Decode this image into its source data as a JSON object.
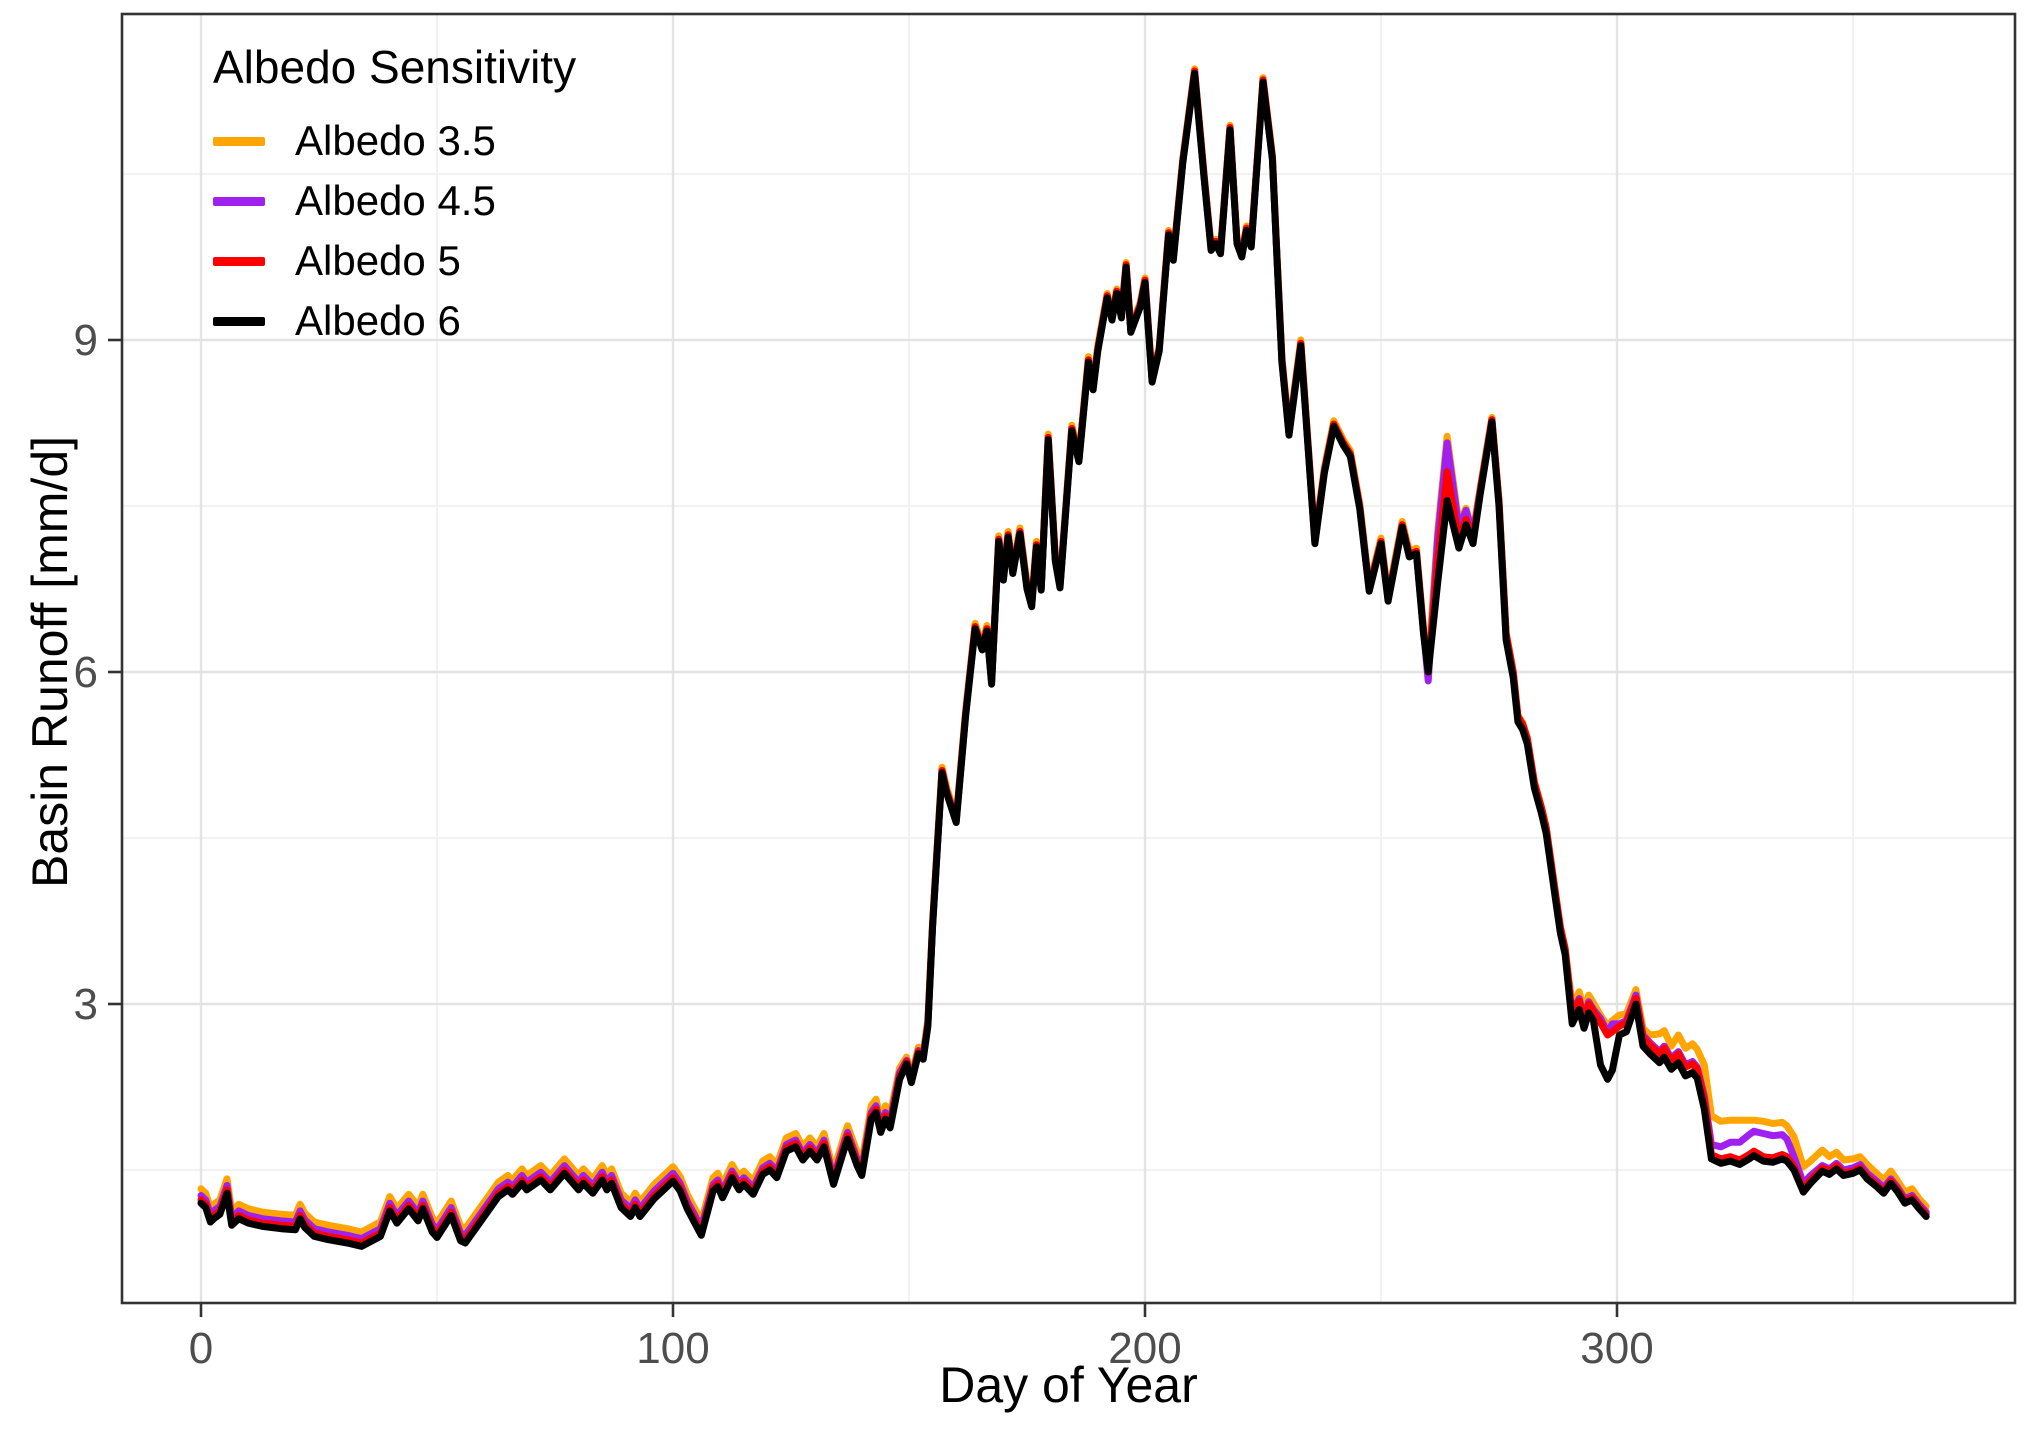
{
  "chart_data": {
    "type": "line",
    "title": "",
    "xlabel": "Day of Year",
    "ylabel": "Basin Runoff [mm/d]",
    "legend": {
      "title": "Albedo Sensitivity",
      "position": "top-left-inside"
    },
    "grid": "major+minor",
    "xlim": [
      -17,
      384
    ],
    "ylim": [
      0.3,
      11.95
    ],
    "x_ticks": [
      0,
      100,
      200,
      300
    ],
    "x_minor_ticks": [
      50,
      150,
      250,
      350
    ],
    "y_ticks": [
      3,
      6,
      9
    ],
    "y_minor_ticks": [
      1.5,
      4.5,
      7.5,
      10.5
    ],
    "tick_label_color": "#4d4d4d",
    "major_grid_color": "#e3e3e3",
    "minor_grid_color": "#f0f0f0",
    "panel_border_color": "#333333",
    "x": [
      0,
      1,
      2,
      3,
      4,
      5.5,
      6.5,
      8,
      10,
      13,
      17,
      20,
      21,
      22,
      24,
      27,
      31,
      34,
      38,
      40,
      41.5,
      44,
      46,
      47,
      49,
      50,
      53,
      55,
      56,
      59,
      61,
      63,
      65,
      66,
      68,
      69,
      72,
      74,
      77,
      80,
      81,
      83,
      85,
      86,
      87,
      89,
      91,
      92,
      93,
      96,
      98,
      100,
      101.5,
      103,
      106,
      108.5,
      109.5,
      110.5,
      112.5,
      114,
      115,
      117,
      119,
      120.5,
      122,
      124,
      126,
      127.5,
      129,
      130.5,
      132,
      134,
      136.5,
      137,
      139,
      140,
      142,
      143,
      144,
      145,
      146,
      148,
      149.5,
      150.5,
      152,
      153,
      154,
      155,
      156,
      157,
      158,
      160,
      162,
      164,
      165.5,
      166.5,
      167.5,
      169,
      170,
      171,
      172,
      173.5,
      175,
      176,
      177,
      178,
      179.5,
      181,
      182,
      183.5,
      184.5,
      186,
      188,
      189,
      190,
      192,
      193,
      194,
      195,
      196,
      197,
      199,
      200,
      201.5,
      203,
      205,
      206,
      208,
      210.5,
      212.5,
      214,
      215,
      216,
      218,
      219.5,
      220.5,
      221.5,
      222.5,
      225,
      227,
      228,
      229,
      230.5,
      233,
      236,
      238,
      240,
      242,
      243.5,
      245.5,
      247.5,
      250,
      251.5,
      254.5,
      256,
      257.5,
      259,
      260,
      262,
      264,
      266.5,
      268,
      269.5,
      271,
      273.5,
      275,
      276.5,
      278,
      279,
      280,
      281,
      282.5,
      284,
      285,
      287,
      288,
      289,
      290.5,
      292,
      293,
      294,
      295,
      296.5,
      298,
      299,
      300.5,
      302,
      304,
      305.5,
      307,
      309,
      310,
      311.5,
      313,
      314.5,
      316,
      317,
      318.5,
      320,
      322,
      324,
      326,
      328,
      329,
      331,
      333,
      335,
      336,
      337.5,
      339.5,
      341,
      343.5,
      345,
      346.5,
      348,
      350,
      351.5,
      353,
      355,
      356.5,
      358,
      359.5,
      361,
      362.5,
      364,
      365.5
    ],
    "series": [
      {
        "name": "Albedo 3.5",
        "color": "#FFA500",
        "values": [
          1.33,
          1.29,
          1.16,
          1.2,
          1.23,
          1.42,
          1.13,
          1.19,
          1.15,
          1.12,
          1.1,
          1.09,
          1.19,
          1.11,
          1.03,
          1.0,
          0.97,
          0.94,
          1.03,
          1.26,
          1.15,
          1.28,
          1.17,
          1.28,
          1.07,
          1.02,
          1.22,
          0.99,
          0.97,
          1.15,
          1.27,
          1.39,
          1.45,
          1.41,
          1.51,
          1.45,
          1.54,
          1.45,
          1.6,
          1.45,
          1.51,
          1.42,
          1.54,
          1.45,
          1.51,
          1.29,
          1.21,
          1.29,
          1.21,
          1.37,
          1.45,
          1.53,
          1.44,
          1.28,
          1.04,
          1.43,
          1.47,
          1.37,
          1.55,
          1.44,
          1.49,
          1.4,
          1.58,
          1.62,
          1.55,
          1.79,
          1.83,
          1.71,
          1.79,
          1.71,
          1.83,
          1.49,
          1.84,
          1.9,
          1.66,
          1.57,
          2.08,
          2.14,
          1.96,
          2.08,
          2.0,
          2.42,
          2.52,
          2.35,
          2.61,
          2.56,
          2.86,
          3.75,
          4.45,
          5.14,
          4.95,
          4.69,
          5.65,
          6.44,
          6.25,
          6.42,
          5.94,
          7.23,
          6.88,
          7.27,
          6.94,
          7.3,
          6.8,
          6.64,
          7.18,
          6.79,
          8.15,
          7.05,
          6.81,
          7.66,
          8.23,
          7.95,
          8.85,
          8.6,
          8.95,
          9.42,
          9.22,
          9.46,
          9.24,
          9.7,
          9.11,
          9.34,
          9.56,
          8.66,
          8.94,
          9.99,
          9.76,
          10.64,
          11.45,
          10.51,
          9.85,
          9.91,
          9.82,
          10.94,
          9.91,
          9.79,
          10.03,
          9.88,
          11.37,
          10.67,
          9.73,
          8.85,
          8.19,
          9.0,
          7.21,
          7.85,
          8.27,
          8.1,
          8.0,
          7.52,
          6.78,
          7.21,
          6.69,
          7.36,
          7.09,
          7.12,
          6.4,
          6.04,
          7.26,
          8.13,
          7.34,
          7.48,
          7.26,
          7.66,
          8.3,
          7.56,
          6.35,
          6.01,
          5.61,
          5.54,
          5.41,
          5.01,
          4.78,
          4.6,
          4.0,
          3.7,
          3.51,
          2.98,
          3.11,
          2.94,
          3.08,
          3.01,
          2.9,
          2.8,
          2.85,
          2.9,
          2.91,
          3.13,
          2.78,
          2.72,
          2.73,
          2.76,
          2.62,
          2.72,
          2.6,
          2.64,
          2.59,
          2.45,
          1.99,
          1.94,
          1.95,
          1.95,
          1.95,
          1.95,
          1.94,
          1.92,
          1.93,
          1.9,
          1.8,
          1.53,
          1.58,
          1.68,
          1.62,
          1.66,
          1.59,
          1.6,
          1.62,
          1.55,
          1.47,
          1.41,
          1.49,
          1.4,
          1.3,
          1.33,
          1.24,
          1.17
        ]
      },
      {
        "name": "Albedo 4.5",
        "color": "#A020F0",
        "values": [
          1.27,
          1.23,
          1.1,
          1.14,
          1.17,
          1.36,
          1.07,
          1.13,
          1.09,
          1.06,
          1.04,
          1.03,
          1.13,
          1.05,
          0.97,
          0.94,
          0.91,
          0.88,
          0.97,
          1.2,
          1.09,
          1.22,
          1.11,
          1.22,
          1.01,
          0.96,
          1.16,
          0.93,
          0.91,
          1.09,
          1.21,
          1.33,
          1.39,
          1.35,
          1.45,
          1.39,
          1.48,
          1.39,
          1.54,
          1.39,
          1.45,
          1.36,
          1.48,
          1.39,
          1.45,
          1.23,
          1.15,
          1.23,
          1.15,
          1.31,
          1.39,
          1.47,
          1.38,
          1.22,
          0.98,
          1.37,
          1.41,
          1.31,
          1.49,
          1.38,
          1.43,
          1.34,
          1.52,
          1.56,
          1.49,
          1.73,
          1.77,
          1.65,
          1.73,
          1.65,
          1.77,
          1.43,
          1.78,
          1.84,
          1.6,
          1.51,
          2.02,
          2.08,
          1.9,
          2.02,
          1.94,
          2.38,
          2.49,
          2.32,
          2.58,
          2.53,
          2.83,
          3.72,
          4.42,
          5.11,
          4.92,
          4.66,
          5.62,
          6.41,
          6.22,
          6.39,
          5.91,
          7.2,
          6.85,
          7.24,
          6.91,
          7.27,
          6.77,
          6.61,
          7.15,
          6.76,
          8.12,
          7.02,
          6.78,
          7.63,
          8.2,
          7.92,
          8.82,
          8.57,
          8.92,
          9.4,
          9.2,
          9.44,
          9.22,
          9.68,
          9.09,
          9.32,
          9.54,
          8.64,
          8.92,
          9.97,
          9.74,
          10.62,
          11.43,
          10.49,
          9.83,
          9.89,
          9.8,
          10.92,
          9.89,
          9.77,
          10.01,
          9.86,
          11.35,
          10.65,
          9.71,
          8.82,
          8.16,
          8.97,
          7.18,
          7.82,
          8.24,
          8.07,
          7.97,
          7.49,
          6.75,
          7.18,
          6.66,
          7.33,
          7.06,
          7.09,
          6.37,
          5.92,
          7.2,
          8.07,
          7.3,
          7.46,
          7.24,
          7.64,
          8.28,
          7.53,
          6.33,
          5.99,
          5.59,
          5.52,
          5.39,
          4.99,
          4.76,
          4.58,
          3.98,
          3.68,
          3.49,
          2.92,
          3.05,
          2.88,
          3.02,
          2.95,
          2.87,
          2.74,
          2.82,
          2.82,
          2.85,
          3.08,
          2.72,
          2.65,
          2.57,
          2.62,
          2.51,
          2.57,
          2.45,
          2.48,
          2.43,
          2.17,
          1.73,
          1.71,
          1.75,
          1.75,
          1.82,
          1.85,
          1.83,
          1.81,
          1.82,
          1.78,
          1.62,
          1.38,
          1.45,
          1.54,
          1.51,
          1.56,
          1.5,
          1.52,
          1.55,
          1.47,
          1.4,
          1.34,
          1.42,
          1.34,
          1.24,
          1.27,
          1.19,
          1.12
        ]
      },
      {
        "name": "Albedo 5",
        "color": "#FF0000",
        "values": [
          1.23,
          1.19,
          1.06,
          1.1,
          1.13,
          1.32,
          1.03,
          1.09,
          1.05,
          1.02,
          1.0,
          0.99,
          1.09,
          1.01,
          0.93,
          0.9,
          0.87,
          0.84,
          0.93,
          1.16,
          1.05,
          1.18,
          1.07,
          1.18,
          0.97,
          0.92,
          1.12,
          0.89,
          0.87,
          1.05,
          1.17,
          1.29,
          1.35,
          1.31,
          1.41,
          1.35,
          1.44,
          1.35,
          1.5,
          1.35,
          1.41,
          1.32,
          1.44,
          1.35,
          1.41,
          1.19,
          1.11,
          1.19,
          1.11,
          1.27,
          1.35,
          1.43,
          1.34,
          1.18,
          0.94,
          1.34,
          1.38,
          1.28,
          1.46,
          1.35,
          1.4,
          1.31,
          1.49,
          1.53,
          1.46,
          1.7,
          1.74,
          1.62,
          1.7,
          1.62,
          1.74,
          1.4,
          1.75,
          1.81,
          1.57,
          1.48,
          1.99,
          2.05,
          1.87,
          1.99,
          1.91,
          2.35,
          2.48,
          2.31,
          2.57,
          2.52,
          2.82,
          3.72,
          4.42,
          5.11,
          4.92,
          4.66,
          5.62,
          6.41,
          6.22,
          6.39,
          5.91,
          7.2,
          6.85,
          7.24,
          6.91,
          7.27,
          6.77,
          6.61,
          7.15,
          6.76,
          8.12,
          7.02,
          6.78,
          7.63,
          8.2,
          7.92,
          8.82,
          8.57,
          8.92,
          9.4,
          9.2,
          9.44,
          9.22,
          9.68,
          9.09,
          9.32,
          9.54,
          8.64,
          8.92,
          9.97,
          9.74,
          10.62,
          11.43,
          10.49,
          9.83,
          9.89,
          9.8,
          10.92,
          9.89,
          9.77,
          10.01,
          9.86,
          11.35,
          10.65,
          9.71,
          8.82,
          8.16,
          8.97,
          7.18,
          7.82,
          8.24,
          8.07,
          7.97,
          7.49,
          6.75,
          7.18,
          6.66,
          7.33,
          7.06,
          7.09,
          6.37,
          6.0,
          7.0,
          7.81,
          7.2,
          7.38,
          7.2,
          7.63,
          8.28,
          7.54,
          6.35,
          6.0,
          5.6,
          5.53,
          5.4,
          5.0,
          4.77,
          4.59,
          3.99,
          3.69,
          3.5,
          2.9,
          3.03,
          2.86,
          3.0,
          2.93,
          2.83,
          2.72,
          2.75,
          2.8,
          2.83,
          3.05,
          2.7,
          2.63,
          2.55,
          2.6,
          2.49,
          2.55,
          2.43,
          2.46,
          2.41,
          2.13,
          1.64,
          1.6,
          1.62,
          1.59,
          1.64,
          1.67,
          1.62,
          1.61,
          1.64,
          1.62,
          1.53,
          1.33,
          1.41,
          1.52,
          1.49,
          1.54,
          1.47,
          1.49,
          1.52,
          1.44,
          1.37,
          1.31,
          1.4,
          1.32,
          1.22,
          1.25,
          1.17,
          1.1
        ]
      },
      {
        "name": "Albedo 6",
        "color": "#000000",
        "values": [
          1.2,
          1.16,
          1.03,
          1.07,
          1.1,
          1.29,
          1.0,
          1.06,
          1.02,
          0.99,
          0.97,
          0.96,
          1.06,
          0.98,
          0.9,
          0.87,
          0.84,
          0.81,
          0.9,
          1.13,
          1.02,
          1.15,
          1.04,
          1.15,
          0.94,
          0.89,
          1.09,
          0.86,
          0.84,
          1.02,
          1.14,
          1.26,
          1.32,
          1.28,
          1.38,
          1.32,
          1.41,
          1.32,
          1.47,
          1.32,
          1.38,
          1.29,
          1.41,
          1.32,
          1.38,
          1.16,
          1.08,
          1.16,
          1.08,
          1.24,
          1.32,
          1.4,
          1.31,
          1.15,
          0.91,
          1.31,
          1.35,
          1.25,
          1.43,
          1.32,
          1.37,
          1.28,
          1.46,
          1.5,
          1.43,
          1.67,
          1.71,
          1.59,
          1.67,
          1.59,
          1.71,
          1.37,
          1.72,
          1.78,
          1.54,
          1.45,
          1.96,
          2.02,
          1.84,
          1.96,
          1.88,
          2.32,
          2.46,
          2.29,
          2.55,
          2.5,
          2.8,
          3.7,
          4.4,
          5.09,
          4.9,
          4.64,
          5.6,
          6.39,
          6.2,
          6.37,
          5.89,
          7.18,
          6.83,
          7.22,
          6.89,
          7.25,
          6.75,
          6.59,
          7.13,
          6.74,
          8.1,
          7.0,
          6.76,
          7.61,
          8.18,
          7.9,
          8.8,
          8.55,
          8.9,
          9.38,
          9.18,
          9.42,
          9.2,
          9.66,
          9.07,
          9.3,
          9.52,
          8.62,
          8.9,
          9.95,
          9.72,
          10.6,
          11.41,
          10.47,
          9.81,
          9.87,
          9.78,
          10.9,
          9.87,
          9.75,
          9.99,
          9.84,
          11.33,
          10.63,
          9.69,
          8.8,
          8.14,
          8.95,
          7.16,
          7.8,
          8.22,
          8.05,
          7.95,
          7.47,
          6.73,
          7.16,
          6.64,
          7.31,
          7.04,
          7.07,
          6.35,
          6.0,
          6.8,
          7.55,
          7.12,
          7.33,
          7.16,
          7.6,
          8.26,
          7.5,
          6.29,
          5.95,
          5.55,
          5.48,
          5.35,
          4.95,
          4.72,
          4.54,
          3.94,
          3.64,
          3.45,
          2.82,
          2.95,
          2.78,
          2.92,
          2.85,
          2.45,
          2.32,
          2.4,
          2.72,
          2.75,
          3.0,
          2.62,
          2.55,
          2.47,
          2.52,
          2.41,
          2.47,
          2.35,
          2.38,
          2.33,
          2.05,
          1.6,
          1.56,
          1.58,
          1.55,
          1.6,
          1.63,
          1.58,
          1.57,
          1.6,
          1.58,
          1.5,
          1.3,
          1.38,
          1.49,
          1.46,
          1.51,
          1.45,
          1.47,
          1.5,
          1.42,
          1.35,
          1.29,
          1.38,
          1.3,
          1.2,
          1.23,
          1.15,
          1.08
        ]
      }
    ]
  }
}
